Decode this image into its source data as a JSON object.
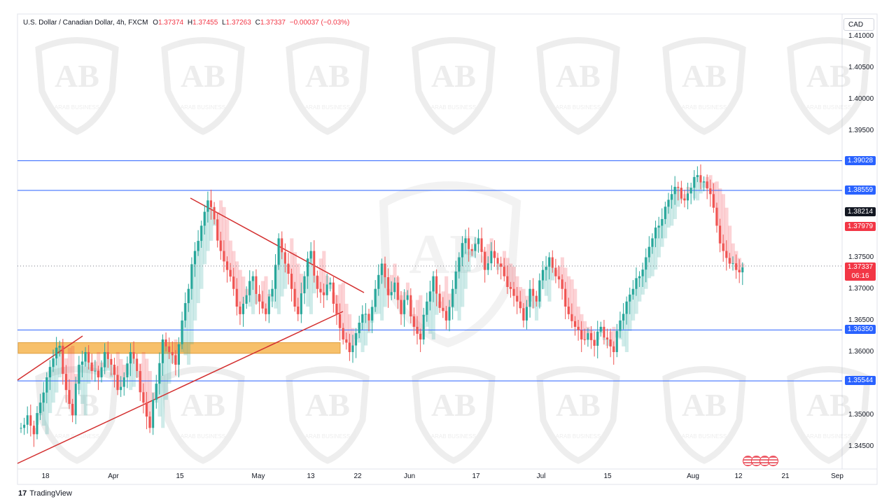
{
  "header": {
    "symbol": "U.S. Dollar / Canadian Dollar, 4h, FXCM",
    "o_label": "O",
    "o": "1.37374",
    "h_label": "H",
    "h": "1.37455",
    "l_label": "L",
    "l": "1.37263",
    "c_label": "C",
    "c": "1.37337",
    "change": "−0.00037 (−0.03%)"
  },
  "currency": "CAD",
  "watermark_text": "ARAB BUSINESS",
  "logo_text": "TradingView",
  "colors": {
    "up": "#26a69a",
    "down": "#ef5350",
    "cloud_up": "#26a69a",
    "cloud_down": "#f23645",
    "hline": "#2962ff",
    "trend": "#d32f2f",
    "zone": "#f7c06a",
    "price_badge": "#f23645"
  },
  "chart_data": {
    "type": "candlestick",
    "timeframe": "4h",
    "ylim": [
      1.3415,
      1.4135
    ],
    "y_ticks": [
      "1.34500",
      "1.35000",
      "1.36000",
      "1.36500",
      "1.37000",
      "1.37500",
      "1.39500",
      "1.40000",
      "1.40500",
      "1.41000"
    ],
    "x_ticks": [
      "18",
      "Apr",
      "15",
      "May",
      "13",
      "22",
      "Jun",
      "17",
      "Jul",
      "15",
      "Aug",
      "12",
      "21",
      "Sep"
    ],
    "horizontal_levels": [
      {
        "value": 1.39028,
        "label": "1.39028"
      },
      {
        "value": 1.38559,
        "label": "1.38559"
      },
      {
        "value": 1.3635,
        "label": "1.36350"
      },
      {
        "value": 1.35544,
        "label": "1.35544"
      }
    ],
    "price_labels": [
      {
        "value": 1.38214,
        "label": "1.38214",
        "color": "#131722"
      },
      {
        "value": 1.37979,
        "label": "1.37979",
        "color": "#f23645"
      },
      {
        "value": 1.37337,
        "label": "1.37337",
        "sub": "06:16",
        "color": "#f23645"
      }
    ],
    "support_zone": {
      "top": 1.3615,
      "bottom": 1.3598
    },
    "trendlines": [
      {
        "from": [
          "18",
          1.355
        ],
        "to": [
          "late Mar",
          1.362
        ]
      },
      {
        "from": [
          "early Mar",
          1.342
        ],
        "to": [
          "mid May",
          1.3665
        ]
      },
      {
        "from": [
          "15 Apr",
          1.384
        ],
        "to": [
          "early Jun",
          1.365
        ]
      }
    ],
    "close_path": [
      1.348,
      1.35,
      1.347,
      1.352,
      1.356,
      1.359,
      1.361,
      1.354,
      1.35,
      1.358,
      1.36,
      1.357,
      1.356,
      1.36,
      1.358,
      1.354,
      1.356,
      1.36,
      1.357,
      1.352,
      1.348,
      1.355,
      1.362,
      1.36,
      1.358,
      1.365,
      1.37,
      1.376,
      1.38,
      1.384,
      1.381,
      1.376,
      1.373,
      1.37,
      1.366,
      1.369,
      1.372,
      1.368,
      1.366,
      1.37,
      1.378,
      1.374,
      1.37,
      1.366,
      1.372,
      1.376,
      1.37,
      1.369,
      1.371,
      1.366,
      1.362,
      1.36,
      1.363,
      1.366,
      1.365,
      1.37,
      1.374,
      1.369,
      1.371,
      1.366,
      1.369,
      1.364,
      1.362,
      1.368,
      1.372,
      1.367,
      1.365,
      1.37,
      1.375,
      1.378,
      1.376,
      1.378,
      1.373,
      1.376,
      1.374,
      1.372,
      1.37,
      1.368,
      1.365,
      1.37,
      1.368,
      1.373,
      1.375,
      1.372,
      1.37,
      1.366,
      1.364,
      1.362,
      1.363,
      1.361,
      1.364,
      1.362,
      1.36,
      1.365,
      1.368,
      1.37,
      1.372,
      1.375,
      1.378,
      1.38,
      1.383,
      1.385,
      1.386,
      1.384,
      1.386,
      1.388,
      1.387,
      1.385,
      1.38,
      1.376,
      1.374,
      1.373,
      1.3734
    ]
  }
}
